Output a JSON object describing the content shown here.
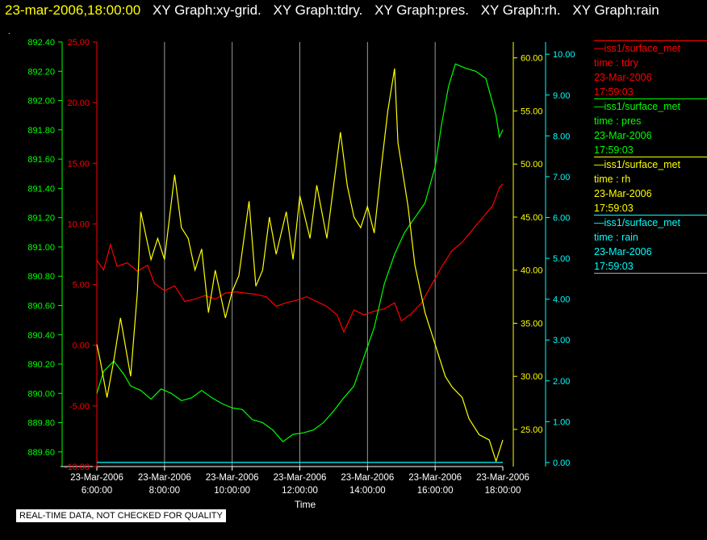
{
  "header": {
    "timestamp": "23-mar-2006,18:00:00",
    "graph_titles": [
      "XY Graph:xy-grid.",
      "XY Graph:tdry.",
      "XY Graph:pres.",
      "XY Graph:rh.",
      "XY Graph:rain"
    ]
  },
  "dot": ".",
  "disclaimer": "REAL-TIME DATA, NOT CHECKED FOR QUALITY",
  "legend": [
    {
      "name": "—iss1/surface_met",
      "var": "time : tdry",
      "date": "23-Mar-2006",
      "time": "17:59:03",
      "color": "#ff0000"
    },
    {
      "name": "—iss1/surface_met",
      "var": "time : pres",
      "date": "23-Mar-2006",
      "time": "17:59:03",
      "color": "#00ff00"
    },
    {
      "name": "—iss1/surface_met",
      "var": "time : rh",
      "date": "23-Mar-2006",
      "time": "17:59:03",
      "color": "#ffff00"
    },
    {
      "name": "—iss1/surface_met",
      "var": "time : rain",
      "date": "23-Mar-2006",
      "time": "17:59:03",
      "color": "#00ffff"
    }
  ],
  "chart_data": {
    "type": "line",
    "xlabel": "Time",
    "xlim": [
      6.0,
      18.0
    ],
    "grid": "vertical",
    "x_ticks": [
      {
        "date": "23-Mar-2006",
        "time": "6:00:00"
      },
      {
        "date": "23-Mar-2006",
        "time": "8:00:00"
      },
      {
        "date": "23-Mar-2006",
        "time": "10:00:00"
      },
      {
        "date": "23-Mar-2006",
        "time": "12:00:00"
      },
      {
        "date": "23-Mar-2006",
        "time": "14:00:00"
      },
      {
        "date": "23-Mar-2006",
        "time": "16:00:00"
      },
      {
        "date": "23-Mar-2006",
        "time": "18:00:00"
      }
    ],
    "axes": {
      "pres": {
        "color": "#00ff00",
        "ylim": [
          889.5,
          892.4
        ],
        "ticks": [
          "889.60",
          "889.80",
          "890.00",
          "890.20",
          "890.40",
          "890.60",
          "890.80",
          "891.00",
          "891.20",
          "891.40",
          "891.60",
          "891.80",
          "892.00",
          "892.20",
          "892.40"
        ]
      },
      "tdry": {
        "color": "#ff0000",
        "ylim": [
          -10,
          25
        ],
        "ticks": [
          "-10.00",
          "-5.00",
          "0.00",
          "5.00",
          "10.00",
          "15.00",
          "20.00",
          "25.00"
        ]
      },
      "rh": {
        "color": "#ffff00",
        "ylim": [
          21.5,
          61.5
        ],
        "ticks": [
          "25.00",
          "30.00",
          "35.00",
          "40.00",
          "45.00",
          "50.00",
          "55.00",
          "60.00"
        ]
      },
      "rain": {
        "color": "#00ffff",
        "ylim": [
          -0.1,
          10.3
        ],
        "ticks": [
          "0.00",
          "1.00",
          "2.00",
          "3.00",
          "4.00",
          "5.00",
          "6.00",
          "7.00",
          "8.00",
          "9.00",
          "10.00"
        ]
      }
    },
    "series": [
      {
        "name": "tdry",
        "axis": "tdry",
        "color": "#ff0000",
        "x": [
          6.0,
          6.2,
          6.4,
          6.6,
          6.9,
          7.2,
          7.5,
          7.7,
          8.0,
          8.3,
          8.6,
          8.9,
          9.2,
          9.5,
          9.8,
          10.1,
          10.4,
          10.7,
          11.0,
          11.3,
          11.6,
          11.9,
          12.2,
          12.5,
          12.8,
          13.1,
          13.3,
          13.6,
          13.9,
          14.2,
          14.5,
          14.8,
          15.0,
          15.3,
          15.6,
          15.9,
          16.2,
          16.5,
          16.8,
          17.1,
          17.4,
          17.7,
          17.9,
          18.0
        ],
        "values": [
          7.0,
          6.2,
          8.3,
          6.5,
          6.8,
          6.1,
          6.6,
          5.1,
          4.5,
          4.9,
          3.6,
          3.8,
          4.1,
          3.8,
          4.3,
          4.4,
          4.3,
          4.2,
          4.0,
          3.2,
          3.5,
          3.7,
          4.0,
          3.6,
          3.2,
          2.5,
          1.1,
          2.9,
          2.5,
          2.8,
          3.0,
          3.5,
          2.0,
          2.6,
          3.5,
          5.0,
          6.5,
          7.8,
          8.5,
          9.5,
          10.5,
          11.5,
          13.0,
          13.3
        ]
      },
      {
        "name": "pres",
        "axis": "pres",
        "color": "#00ff00",
        "x": [
          6.0,
          6.2,
          6.5,
          6.8,
          7.0,
          7.3,
          7.6,
          7.9,
          8.2,
          8.5,
          8.8,
          9.1,
          9.4,
          9.7,
          10.0,
          10.3,
          10.6,
          10.9,
          11.2,
          11.5,
          11.8,
          12.1,
          12.4,
          12.7,
          13.0,
          13.3,
          13.6,
          13.9,
          14.2,
          14.5,
          14.8,
          15.1,
          15.4,
          15.7,
          16.0,
          16.2,
          16.4,
          16.6,
          16.9,
          17.2,
          17.5,
          17.8,
          17.9,
          18.0
        ],
        "values": [
          890.0,
          890.15,
          890.22,
          890.13,
          890.05,
          890.02,
          889.96,
          890.03,
          890.0,
          889.95,
          889.97,
          890.02,
          889.97,
          889.93,
          889.9,
          889.89,
          889.82,
          889.8,
          889.75,
          889.67,
          889.72,
          889.73,
          889.75,
          889.8,
          889.88,
          889.97,
          890.05,
          890.25,
          890.45,
          890.75,
          890.95,
          891.1,
          891.2,
          891.3,
          891.55,
          891.85,
          892.1,
          892.25,
          892.22,
          892.2,
          892.15,
          891.9,
          891.75,
          891.8
        ]
      },
      {
        "name": "rh",
        "axis": "rh",
        "color": "#ffff00",
        "x": [
          6.0,
          6.1,
          6.3,
          6.5,
          6.7,
          7.0,
          7.2,
          7.3,
          7.6,
          7.8,
          8.0,
          8.3,
          8.5,
          8.7,
          8.9,
          9.1,
          9.3,
          9.5,
          9.8,
          10.0,
          10.2,
          10.5,
          10.7,
          10.9,
          11.1,
          11.3,
          11.6,
          11.8,
          12.0,
          12.3,
          12.5,
          12.8,
          13.0,
          13.2,
          13.4,
          13.6,
          13.8,
          14.0,
          14.2,
          14.4,
          14.6,
          14.8,
          14.9,
          15.0,
          15.2,
          15.4,
          15.7,
          16.0,
          16.3,
          16.5,
          16.8,
          17.0,
          17.3,
          17.6,
          17.8,
          17.9,
          18.0
        ],
        "values": [
          33.0,
          31.5,
          28.0,
          31.5,
          35.5,
          30.0,
          38.0,
          45.5,
          41.0,
          43.0,
          41.0,
          49.0,
          44.0,
          43.0,
          40.0,
          42.0,
          36.0,
          40.0,
          35.5,
          38.0,
          39.5,
          46.5,
          38.5,
          40.0,
          45.0,
          41.5,
          45.5,
          41.0,
          47.0,
          43.0,
          48.0,
          43.0,
          48.0,
          53.0,
          48.0,
          45.0,
          44.0,
          46.0,
          43.5,
          49.5,
          55.0,
          59.0,
          52.0,
          50.0,
          46.0,
          40.5,
          36.0,
          33.0,
          30.0,
          29.0,
          28.0,
          26.0,
          24.5,
          24.0,
          22.0,
          23.0,
          24.0
        ]
      },
      {
        "name": "rain",
        "axis": "rain",
        "color": "#00ffff",
        "x": [
          6.0,
          18.0
        ],
        "values": [
          0.0,
          0.0
        ]
      }
    ]
  }
}
